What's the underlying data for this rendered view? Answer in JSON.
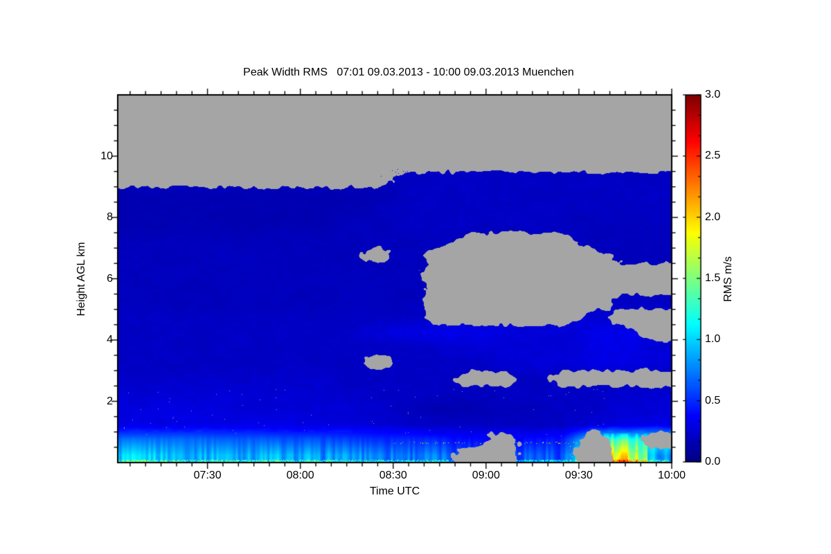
{
  "page": {
    "background_color": "#ffffff",
    "frame_color": "#000000",
    "no_data_color": "#a5a5a5"
  },
  "chart": {
    "title": "Peak Width RMS   07:01 09.03.2013 - 10:00 09.03.2013 Muenchen",
    "x_axis": {
      "label": "Time UTC",
      "start_utc": "07:01",
      "end_utc": "10:00",
      "major_tick_labels": [
        "07:30",
        "08:00",
        "08:30",
        "09:00",
        "09:30",
        "10:00"
      ],
      "major_tick_minutes": [
        30,
        60,
        90,
        120,
        150,
        180
      ],
      "minor_tick_step_minutes": 5
    },
    "y_axis": {
      "label": "Height AGL km",
      "min_km": 0,
      "max_km": 12,
      "major_tick_values": [
        2,
        4,
        6,
        8,
        10
      ],
      "minor_tick_step_km": 0.5
    },
    "colorbar": {
      "label": "RMS m/s",
      "min": 0.0,
      "max": 3.0,
      "tick_labels": [
        "0.0",
        "0.5",
        "1.0",
        "1.5",
        "2.0",
        "2.5",
        "3.0"
      ],
      "tick_values": [
        0.0,
        0.5,
        1.0,
        1.5,
        2.0,
        2.5,
        3.0
      ],
      "minor_subdivisions": 3,
      "colormap": "jet"
    }
  },
  "chart_data": {
    "type": "heatmap",
    "title": "Peak Width RMS   07:01 09.03.2013 - 10:00 09.03.2013 Muenchen",
    "site": "Muenchen",
    "time_start": "07:01 09.03.2013",
    "time_end": "10:00 09.03.2013",
    "xlabel": "Time UTC",
    "ylabel": "Height AGL km",
    "value_name": "RMS",
    "units": "m/s",
    "vmin": 0.0,
    "vmax": 3.0,
    "colormap": "jet",
    "null_means": "no data (rendered gray)",
    "row_order": "bottom_to_top",
    "x_bins_utc": [
      "07:05",
      "07:15",
      "07:25",
      "07:35",
      "07:45",
      "07:55",
      "08:05",
      "08:15",
      "08:25",
      "08:35",
      "08:45",
      "08:55",
      "09:05",
      "09:15",
      "09:25",
      "09:35",
      "09:45",
      "09:55"
    ],
    "x_bin_minutes": [
      5,
      15,
      25,
      35,
      45,
      55,
      65,
      75,
      85,
      95,
      105,
      115,
      125,
      135,
      145,
      155,
      165,
      175
    ],
    "y_bins_km": [
      0.25,
      0.75,
      1.25,
      1.75,
      2.25,
      2.75,
      3.25,
      3.75,
      4.25,
      4.75,
      5.25,
      5.75,
      6.25,
      6.75,
      7.25,
      7.75,
      8.25,
      8.75,
      9.25,
      9.75,
      10.25,
      10.75,
      11.25,
      11.75
    ],
    "values": [
      [
        0.95,
        0.95,
        0.9,
        0.9,
        0.85,
        0.85,
        0.8,
        0.8,
        0.75,
        0.7,
        0.65,
        null,
        null,
        0.6,
        0.6,
        null,
        1.3,
        0.8
      ],
      [
        0.7,
        0.7,
        0.7,
        0.65,
        0.65,
        0.6,
        0.6,
        0.55,
        0.5,
        0.5,
        0.45,
        0.4,
        null,
        0.4,
        0.45,
        null,
        1.1,
        null
      ],
      [
        0.3,
        0.3,
        0.3,
        0.3,
        0.3,
        0.3,
        0.28,
        0.28,
        0.25,
        0.22,
        0.2,
        0.2,
        0.2,
        0.2,
        0.2,
        0.25,
        0.3,
        0.3
      ],
      [
        0.28,
        0.28,
        0.28,
        0.28,
        0.25,
        0.25,
        0.25,
        0.25,
        0.22,
        0.18,
        0.15,
        0.15,
        0.18,
        0.18,
        0.2,
        0.2,
        0.25,
        0.25
      ],
      [
        0.25,
        0.25,
        0.25,
        0.25,
        0.25,
        0.25,
        0.25,
        0.22,
        0.22,
        0.2,
        0.2,
        0.2,
        0.2,
        0.2,
        0.2,
        0.2,
        0.22,
        0.25
      ],
      [
        0.22,
        0.22,
        0.22,
        0.22,
        0.22,
        0.22,
        0.22,
        0.2,
        0.2,
        0.2,
        0.2,
        null,
        null,
        0.2,
        null,
        null,
        null,
        null
      ],
      [
        0.2,
        0.2,
        0.2,
        0.2,
        0.2,
        0.2,
        0.2,
        0.2,
        null,
        0.2,
        0.2,
        0.2,
        0.25,
        0.25,
        0.25,
        0.3,
        0.3,
        0.25
      ],
      [
        0.2,
        0.2,
        0.2,
        0.2,
        0.2,
        0.2,
        0.2,
        0.2,
        0.2,
        0.2,
        0.22,
        0.25,
        0.25,
        0.25,
        0.25,
        0.3,
        0.3,
        0.25
      ],
      [
        0.2,
        0.2,
        0.2,
        0.2,
        0.2,
        0.2,
        0.2,
        0.2,
        0.25,
        0.3,
        0.3,
        0.3,
        0.28,
        0.25,
        0.25,
        0.3,
        0.3,
        null
      ],
      [
        0.2,
        0.2,
        0.2,
        0.2,
        0.2,
        0.2,
        0.2,
        0.2,
        0.2,
        0.2,
        null,
        null,
        null,
        null,
        null,
        0.25,
        null,
        null
      ],
      [
        0.18,
        0.18,
        0.18,
        0.18,
        0.18,
        0.18,
        0.18,
        0.18,
        0.18,
        0.18,
        null,
        null,
        null,
        null,
        null,
        null,
        0.2,
        0.2
      ],
      [
        0.18,
        0.18,
        0.18,
        0.18,
        0.18,
        0.18,
        0.18,
        0.18,
        0.18,
        0.18,
        null,
        null,
        null,
        null,
        null,
        null,
        null,
        null
      ],
      [
        0.18,
        0.18,
        0.18,
        0.18,
        0.18,
        0.18,
        0.18,
        0.18,
        0.18,
        0.18,
        null,
        null,
        null,
        null,
        null,
        null,
        null,
        null
      ],
      [
        0.18,
        0.18,
        0.18,
        0.18,
        0.18,
        0.18,
        0.18,
        0.18,
        null,
        0.18,
        null,
        null,
        null,
        null,
        null,
        null,
        0.18,
        0.18
      ],
      [
        0.18,
        0.18,
        0.18,
        0.18,
        0.18,
        0.18,
        0.18,
        0.18,
        0.18,
        0.18,
        0.18,
        null,
        null,
        null,
        null,
        0.18,
        0.18,
        0.18
      ],
      [
        0.15,
        0.15,
        0.15,
        0.15,
        0.15,
        0.15,
        0.15,
        0.18,
        0.18,
        0.2,
        0.2,
        0.2,
        0.2,
        0.2,
        0.2,
        0.18,
        0.18,
        0.18
      ],
      [
        0.15,
        0.15,
        0.15,
        0.15,
        0.15,
        0.15,
        0.15,
        0.15,
        0.18,
        0.2,
        0.2,
        0.2,
        0.2,
        0.2,
        0.2,
        0.2,
        0.2,
        0.2
      ],
      [
        0.15,
        0.15,
        0.15,
        0.15,
        0.15,
        0.15,
        0.15,
        0.15,
        0.15,
        0.2,
        0.2,
        0.2,
        0.2,
        0.2,
        0.2,
        0.2,
        0.2,
        0.2
      ],
      [
        null,
        null,
        null,
        null,
        null,
        null,
        null,
        null,
        null,
        0.2,
        0.2,
        0.2,
        0.2,
        0.2,
        0.2,
        0.2,
        0.2,
        0.2
      ],
      [
        null,
        null,
        null,
        null,
        null,
        null,
        null,
        null,
        null,
        null,
        null,
        null,
        null,
        null,
        null,
        null,
        null,
        null
      ],
      [
        null,
        null,
        null,
        null,
        null,
        null,
        null,
        null,
        null,
        null,
        null,
        null,
        null,
        null,
        null,
        null,
        null,
        null
      ],
      [
        null,
        null,
        null,
        null,
        null,
        null,
        null,
        null,
        null,
        null,
        null,
        null,
        null,
        null,
        null,
        null,
        null,
        null
      ],
      [
        null,
        null,
        null,
        null,
        null,
        null,
        null,
        null,
        null,
        null,
        null,
        null,
        null,
        null,
        null,
        null,
        null,
        null
      ],
      [
        null,
        null,
        null,
        null,
        null,
        null,
        null,
        null,
        null,
        null,
        null,
        null,
        null,
        null,
        null,
        null,
        null,
        null
      ]
    ],
    "annotations": {
      "cloud_top_km_before_0835": 8.7,
      "cloud_top_km_after_0840": 9.35,
      "boundary_layer_top_km": 0.9,
      "bright_streak_period_utc": [
        "09:40",
        "09:52"
      ],
      "large_no_data_blob": "08:40-10:00 between ~4.5 and ~7.4 km"
    }
  }
}
